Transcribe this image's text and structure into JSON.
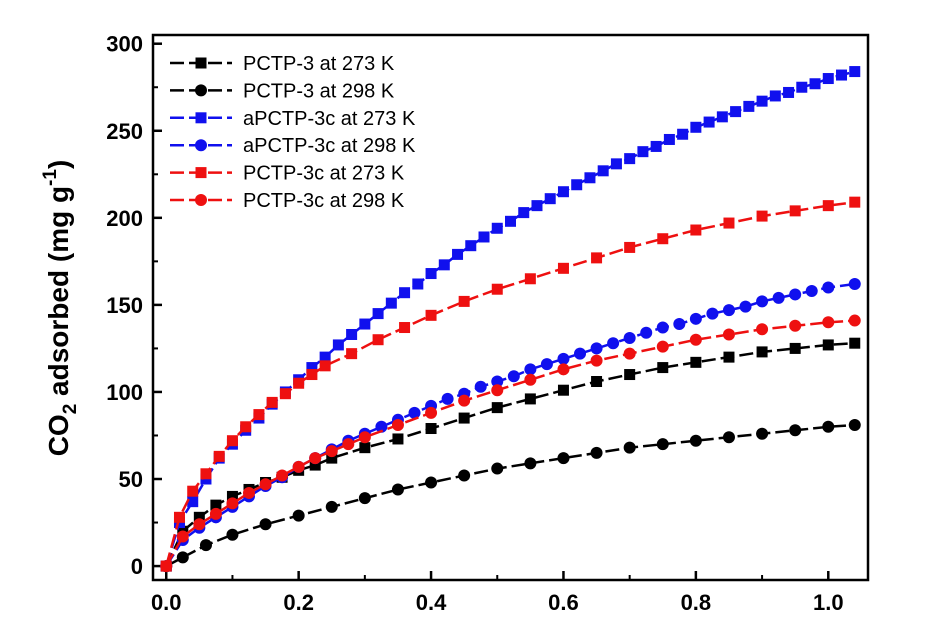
{
  "chart_data": {
    "type": "line",
    "title": "",
    "xlabel": "",
    "ylabel": {
      "base": "CO",
      "sub": "2",
      "middle": " adsorbed (mg g",
      "sup": "-1",
      "end": ")"
    },
    "xlim": [
      -0.02,
      1.06
    ],
    "ylim": [
      -8,
      305
    ],
    "xticks": [
      0.0,
      0.2,
      0.4,
      0.6,
      0.8,
      1.0
    ],
    "xtick_labels": [
      "0.0",
      "0.2",
      "0.4",
      "0.6",
      "0.8",
      "1.0"
    ],
    "yticks": [
      0,
      50,
      100,
      150,
      200,
      250,
      300
    ],
    "ytick_labels": [
      "0",
      "50",
      "100",
      "150",
      "200",
      "250",
      "300"
    ],
    "grid": false,
    "legend_position": "top-left",
    "series": [
      {
        "name": "PCTP-3 at 273 K",
        "color": "#000000",
        "marker": "square",
        "x": [
          0.0,
          0.025,
          0.05,
          0.075,
          0.1,
          0.125,
          0.15,
          0.175,
          0.2,
          0.225,
          0.25,
          0.3,
          0.35,
          0.4,
          0.45,
          0.5,
          0.55,
          0.6,
          0.65,
          0.7,
          0.75,
          0.8,
          0.85,
          0.9,
          0.95,
          1.0,
          1.04
        ],
        "y": [
          0,
          20,
          28,
          35,
          40,
          44,
          48,
          51,
          55,
          58,
          62,
          68,
          73,
          79,
          85,
          91,
          96,
          101,
          106,
          110,
          114,
          117,
          120,
          123,
          125,
          127,
          128
        ]
      },
      {
        "name": "PCTP-3 at 298 K",
        "color": "#000000",
        "marker": "circle",
        "x": [
          0.0,
          0.025,
          0.06,
          0.1,
          0.15,
          0.2,
          0.25,
          0.3,
          0.35,
          0.4,
          0.45,
          0.5,
          0.55,
          0.6,
          0.65,
          0.7,
          0.75,
          0.8,
          0.85,
          0.9,
          0.95,
          1.0,
          1.04
        ],
        "y": [
          0,
          5,
          12,
          18,
          24,
          29,
          34,
          39,
          44,
          48,
          52,
          56,
          59,
          62,
          65,
          68,
          70,
          72,
          74,
          76,
          78,
          80,
          81
        ]
      },
      {
        "name": "aPCTP-3c at 273 K",
        "color": "#1010ee",
        "marker": "square",
        "x": [
          0.0,
          0.02,
          0.04,
          0.06,
          0.08,
          0.1,
          0.12,
          0.14,
          0.16,
          0.18,
          0.2,
          0.22,
          0.24,
          0.26,
          0.28,
          0.3,
          0.32,
          0.34,
          0.36,
          0.38,
          0.4,
          0.42,
          0.44,
          0.46,
          0.48,
          0.5,
          0.52,
          0.54,
          0.56,
          0.58,
          0.6,
          0.62,
          0.64,
          0.66,
          0.68,
          0.7,
          0.72,
          0.74,
          0.76,
          0.78,
          0.8,
          0.82,
          0.84,
          0.86,
          0.88,
          0.9,
          0.92,
          0.94,
          0.96,
          0.98,
          1.0,
          1.02,
          1.04
        ],
        "y": [
          0,
          25,
          37,
          50,
          62,
          70,
          78,
          85,
          93,
          100,
          107,
          114,
          120,
          127,
          133,
          139,
          145,
          151,
          157,
          162,
          168,
          173,
          179,
          184,
          189,
          194,
          198,
          203,
          207,
          211,
          215,
          219,
          223,
          227,
          231,
          234,
          238,
          241,
          245,
          248,
          252,
          255,
          258,
          261,
          264,
          267,
          270,
          272,
          275,
          277,
          280,
          282,
          284
        ]
      },
      {
        "name": "aPCTP-3c at 298 K",
        "color": "#1010ee",
        "marker": "circle",
        "x": [
          0.0,
          0.025,
          0.05,
          0.075,
          0.1,
          0.125,
          0.15,
          0.175,
          0.2,
          0.225,
          0.25,
          0.275,
          0.3,
          0.325,
          0.35,
          0.375,
          0.4,
          0.425,
          0.45,
          0.475,
          0.5,
          0.525,
          0.55,
          0.575,
          0.6,
          0.625,
          0.65,
          0.675,
          0.7,
          0.725,
          0.75,
          0.775,
          0.8,
          0.825,
          0.85,
          0.875,
          0.9,
          0.925,
          0.95,
          0.975,
          1.0,
          1.04
        ],
        "y": [
          0,
          15,
          22,
          28,
          34,
          40,
          46,
          51,
          57,
          62,
          67,
          72,
          76,
          80,
          84,
          88,
          92,
          96,
          99,
          103,
          106,
          109,
          113,
          116,
          119,
          122,
          125,
          128,
          131,
          134,
          137,
          139,
          142,
          145,
          147,
          149,
          152,
          154,
          156,
          158,
          160,
          162
        ]
      },
      {
        "name": "PCTP-3c at 273 K",
        "color": "#ee1010",
        "marker": "square",
        "x": [
          0.0,
          0.02,
          0.04,
          0.06,
          0.08,
          0.1,
          0.12,
          0.14,
          0.16,
          0.18,
          0.2,
          0.22,
          0.24,
          0.28,
          0.32,
          0.36,
          0.4,
          0.45,
          0.5,
          0.55,
          0.6,
          0.65,
          0.7,
          0.75,
          0.8,
          0.85,
          0.9,
          0.95,
          1.0,
          1.04
        ],
        "y": [
          0,
          28,
          43,
          53,
          63,
          72,
          80,
          87,
          94,
          99,
          105,
          110,
          115,
          122,
          130,
          137,
          144,
          152,
          159,
          165,
          171,
          177,
          183,
          188,
          193,
          197,
          201,
          204,
          207,
          209
        ]
      },
      {
        "name": "PCTP-3c at 298 K",
        "color": "#ee1010",
        "marker": "circle",
        "x": [
          0.0,
          0.025,
          0.05,
          0.075,
          0.1,
          0.125,
          0.15,
          0.175,
          0.2,
          0.225,
          0.25,
          0.275,
          0.3,
          0.35,
          0.4,
          0.45,
          0.5,
          0.55,
          0.6,
          0.65,
          0.7,
          0.75,
          0.8,
          0.85,
          0.9,
          0.95,
          1.0,
          1.04
        ],
        "y": [
          0,
          17,
          24,
          30,
          36,
          42,
          47,
          52,
          57,
          62,
          66,
          70,
          74,
          81,
          88,
          95,
          101,
          107,
          113,
          118,
          122,
          126,
          130,
          133,
          136,
          138,
          140,
          141
        ]
      }
    ]
  }
}
